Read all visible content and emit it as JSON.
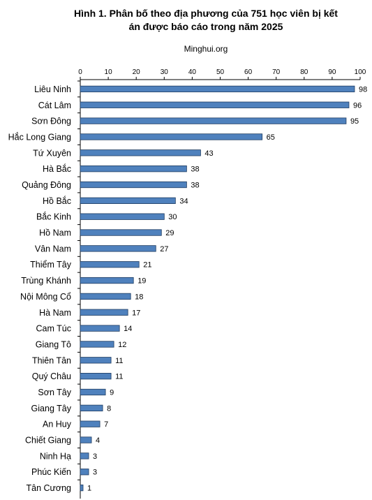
{
  "chart_data": {
    "type": "bar",
    "orientation": "horizontal",
    "title_line1": "Hình 1. Phân bố theo địa phương của 751 học viên bị kết",
    "title_line2": "án được báo cáo trong năm 2025",
    "subtitle": "Minghui.org",
    "xlim": [
      0,
      100
    ],
    "x_ticks": [
      "0",
      "10",
      "20",
      "30",
      "40",
      "50",
      "60",
      "70",
      "80",
      "90",
      "100"
    ],
    "categories": [
      "Liêu Ninh",
      "Cát Lâm",
      "Sơn Đông",
      "Hắc Long Giang",
      "Tứ Xuyên",
      "Hà Bắc",
      "Quảng Đông",
      "Hồ Bắc",
      "Bắc Kinh",
      "Hồ Nam",
      "Vân Nam",
      "Thiểm Tây",
      "Trùng Khánh",
      "Nội Mông Cổ",
      "Hà Nam",
      "Cam Túc",
      "Giang Tô",
      "Thiên Tân",
      "Quý Châu",
      "Sơn Tây",
      "Giang Tây",
      "An Huy",
      "Chiết Giang",
      "Ninh Hạ",
      "Phúc Kiến",
      "Tân Cương"
    ],
    "values": [
      98,
      96,
      95,
      65,
      43,
      38,
      38,
      34,
      30,
      29,
      27,
      21,
      19,
      18,
      17,
      14,
      12,
      11,
      11,
      9,
      8,
      7,
      4,
      3,
      3,
      1
    ],
    "value_labels": [
      "98",
      "96",
      "95",
      "65",
      "43",
      "38",
      "38",
      "34",
      "30",
      "29",
      "27",
      "21",
      "19",
      "18",
      "17",
      "14",
      "12",
      "11",
      "11",
      "9",
      "8",
      "7",
      "4",
      "3",
      "3",
      "1"
    ],
    "bar_color": "#4f81bd",
    "bar_edge_color": "#1f3c60",
    "grid": false
  }
}
